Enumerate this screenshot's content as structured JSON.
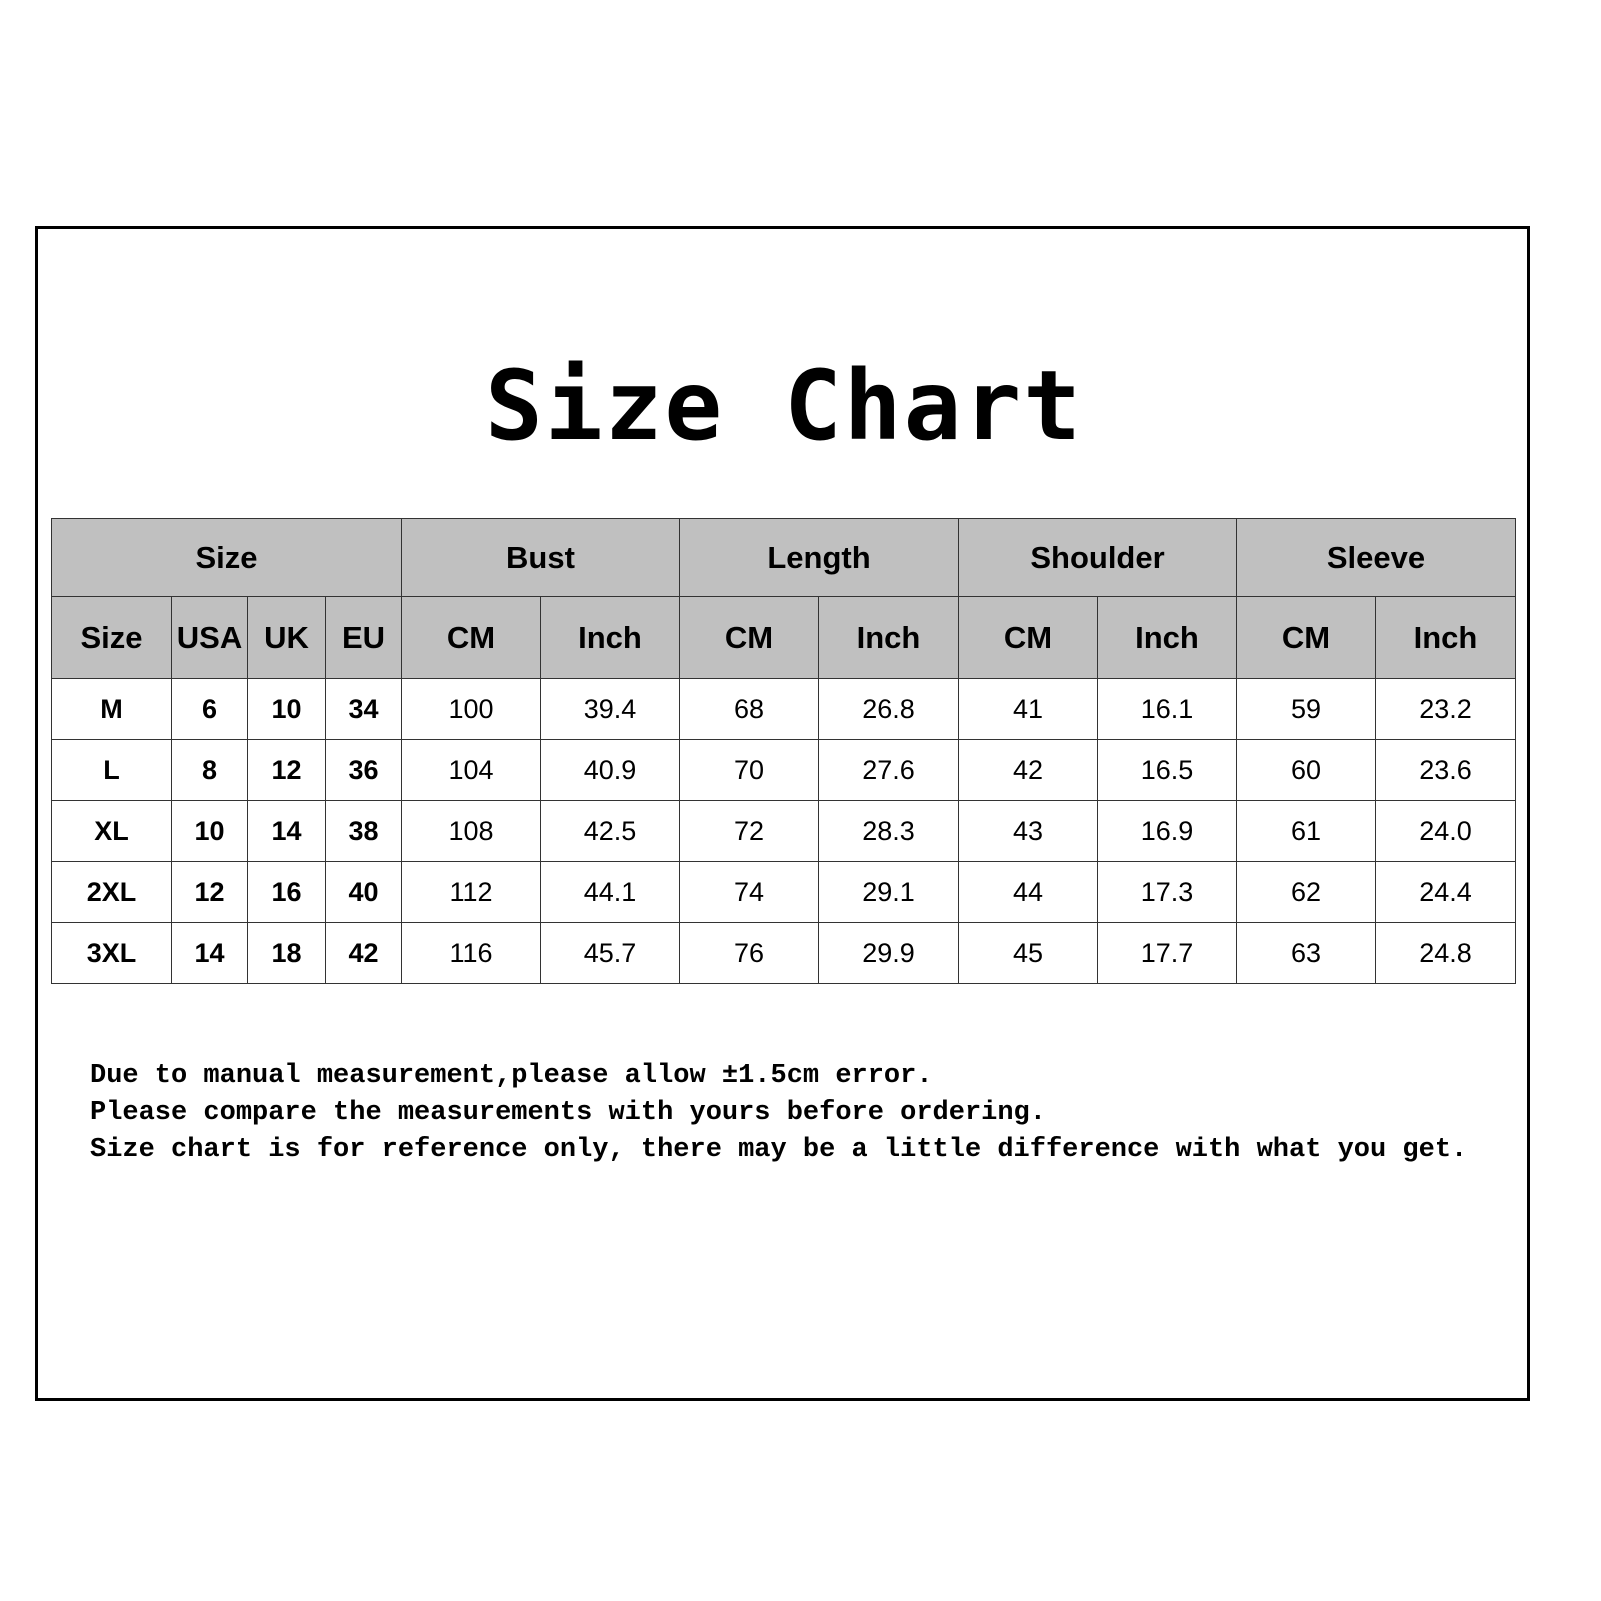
{
  "title": "Size Chart",
  "group_headers": [
    "Size",
    "Bust",
    "Length",
    "Shoulder",
    "Sleeve"
  ],
  "sub_headers": [
    "Size",
    "USA",
    "UK",
    "EU",
    "CM",
    "Inch",
    "CM",
    "Inch",
    "CM",
    "Inch",
    "CM",
    "Inch"
  ],
  "rows": [
    [
      "M",
      "6",
      "10",
      "34",
      "100",
      "39.4",
      "68",
      "26.8",
      "41",
      "16.1",
      "59",
      "23.2"
    ],
    [
      "L",
      "8",
      "12",
      "36",
      "104",
      "40.9",
      "70",
      "27.6",
      "42",
      "16.5",
      "60",
      "23.6"
    ],
    [
      "XL",
      "10",
      "14",
      "38",
      "108",
      "42.5",
      "72",
      "28.3",
      "43",
      "16.9",
      "61",
      "24.0"
    ],
    [
      "2XL",
      "12",
      "16",
      "40",
      "112",
      "44.1",
      "74",
      "29.1",
      "44",
      "17.3",
      "62",
      "24.4"
    ],
    [
      "3XL",
      "14",
      "18",
      "42",
      "116",
      "45.7",
      "76",
      "29.9",
      "45",
      "17.7",
      "63",
      "24.8"
    ]
  ],
  "notes": [
    "Due to manual measurement,please allow ±1.5cm error.",
    "Please compare the measurements with yours before ordering.",
    "Size chart is for reference only, there may be a little difference with what you get."
  ],
  "colors": {
    "header_bg": "#c0c0c0",
    "border": "#000000"
  }
}
